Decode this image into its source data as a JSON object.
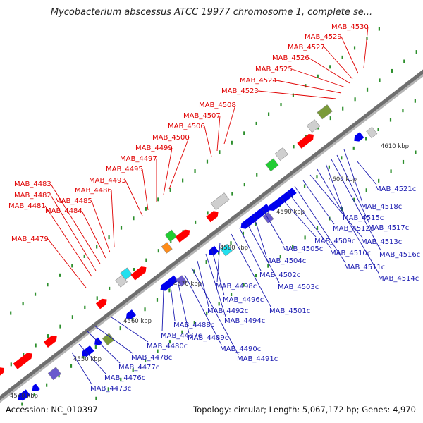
{
  "title": "Mycobacterium abscessus ATCC 19977 chromosome 1, complete se...",
  "footer": {
    "accession": "Accession: NC_010397",
    "summary": "Topology: circular; Length: 5,067,172 bp; Genes: 4,970"
  },
  "colors": {
    "forward_label": "#e00000",
    "reverse_label": "#1a1ab0",
    "forward_gene": "#ff0000",
    "reverse_gene": "#0000ee",
    "backbone": "#777777",
    "tick_dots": "#2d8f2d"
  },
  "scale_ticks": [
    "4540 kbp",
    "4550 kbp",
    "4560 kbp",
    "4570 kbp",
    "4580 kbp",
    "4590 kbp",
    "4600 kbp",
    "4610 kbp"
  ],
  "forward_labels": [
    "MAB_4479",
    "MAB_4481",
    "MAB_4482",
    "MAB_4483",
    "MAB_4484",
    "MAB_4485",
    "MAB_4486",
    "MAB_4493",
    "MAB_4495",
    "MAB_4497",
    "MAB_4499",
    "MAB_4500",
    "MAB_4506",
    "MAB_4507",
    "MAB_4508",
    "MAB_4523",
    "MAB_4524",
    "MAB_4525",
    "MAB_4526",
    "MAB_4527",
    "MAB_4529",
    "MAB_4530"
  ],
  "reverse_labels": [
    "MAB_4473c",
    "MAB_4476c",
    "MAB_4477c",
    "MAB_4478c",
    "MAB_4480c",
    "MAB_4487c",
    "MAB_4488c",
    "MAB_4489c",
    "MAB_4490c",
    "MAB_4491c",
    "MAB_4492c",
    "MAB_4494c",
    "MAB_4496c",
    "MAB_4498c",
    "MAB_4501c",
    "MAB_4502c",
    "MAB_4503c",
    "MAB_4504c",
    "MAB_4505c",
    "MAB_4509c",
    "MAB_4510c",
    "MAB_4511c",
    "MAB_4512c",
    "MAB_4513c",
    "MAB_4514c",
    "MAB_4515c",
    "MAB_4516c",
    "MAB_4517c",
    "MAB_4518c",
    "MAB_4521c"
  ]
}
